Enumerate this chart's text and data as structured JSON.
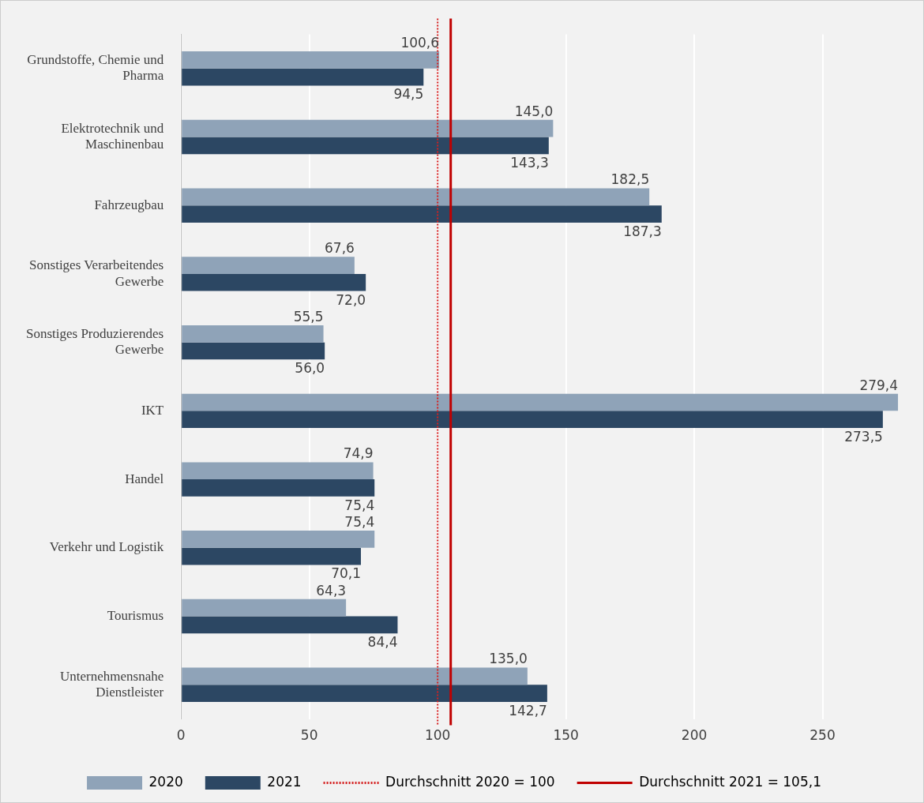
{
  "chart_data": {
    "type": "bar",
    "orientation": "horizontal",
    "categories": [
      "Grundstoffe, Chemie und Pharma",
      "Elektrotechnik und Maschinenbau",
      "Fahrzeugbau",
      "Sonstiges Verarbeitendes Gewerbe",
      "Sonstiges Produzierendes Gewerbe",
      "IKT",
      "Handel",
      "Verkehr und Logistik",
      "Tourismus",
      "Unternehmensnahe Dienstleister"
    ],
    "series": [
      {
        "name": "2020",
        "color": "#8fa3b8",
        "values": [
          100.6,
          145.0,
          182.5,
          67.6,
          55.5,
          279.4,
          74.9,
          75.4,
          64.3,
          135.0
        ],
        "value_labels": [
          "100,6",
          "145,0",
          "182,5",
          "67,6",
          "55,5",
          "279,4",
          "74,9",
          "75,4",
          "64,3",
          "135,0"
        ]
      },
      {
        "name": "2021",
        "color": "#2c4763",
        "values": [
          94.5,
          143.3,
          187.3,
          72.0,
          56.0,
          273.5,
          75.4,
          70.1,
          84.4,
          142.7
        ],
        "value_labels": [
          "94,5",
          "143,3",
          "187,3",
          "72,0",
          "56,0",
          "273,5",
          "75,4",
          "70,1",
          "84,4",
          "142,7"
        ]
      }
    ],
    "xlim": [
      0,
      280
    ],
    "xticks": [
      0,
      50,
      100,
      150,
      200,
      250
    ],
    "grid": "x",
    "legend": "bottom",
    "ref_lines": [
      {
        "axis": "x",
        "value": 100,
        "label": "Durchschnitt 2020 = 100",
        "color": "#d42020",
        "line_style": "dotted"
      },
      {
        "axis": "x",
        "value": 105.1,
        "label": "Durchschnitt 2021 = 105,1",
        "color": "#c00000",
        "line_style": "solid"
      }
    ]
  }
}
